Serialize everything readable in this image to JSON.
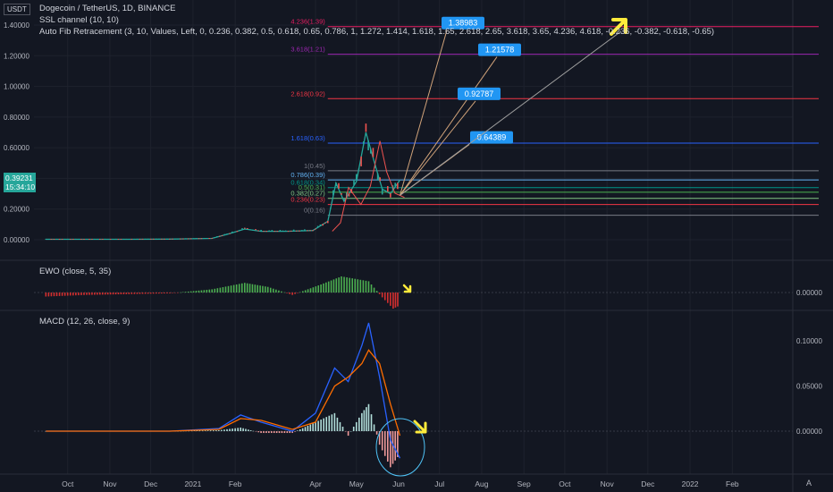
{
  "header": {
    "symbol": "Dogecoin / TetherUS, 1D, BINANCE",
    "indicator1": "SSL channel (10, 10)",
    "indicator2": "Auto Fib Retracement (3, 10, Values, Left, 0, 0.236, 0.382, 0.5, 0.618, 0.65, 0.786, 1, 1.272, 1.414, 1.618, 1.65, 2.618, 2.65, 3.618, 3.65, 4.236, 4.618, -0.236, -0.382, -0.618, -0.65)",
    "currency": "USDT"
  },
  "price_tag": {
    "price": "0.39231",
    "countdown": "15:34:10",
    "color": "#26a69a"
  },
  "auto_scale_label": "A",
  "colors": {
    "bg": "#131722",
    "up": "#26a69a",
    "down": "#ef5350",
    "grid": "#1e222d",
    "ewo_up": "#4caf50",
    "ewo_down": "#d32f2f",
    "macd": "#2962ff",
    "signal": "#ff6d00",
    "callout": "#2196f3",
    "arrow": "#ffeb3b"
  },
  "chart_data": [
    {
      "type": "line",
      "title": "Dogecoin / TetherUS, 1D, BINANCE",
      "ylabel": "USDT",
      "y_ticks": [
        "1.40000",
        "1.20000",
        "1.00000",
        "0.80000",
        "0.60000",
        "0.40000",
        "0.20000",
        "0.00000"
      ],
      "x_ticks": [
        "Oct",
        "Nov",
        "Dec",
        "2021",
        "Feb",
        "Apr",
        "May",
        "Jun",
        "Jul",
        "Aug",
        "Sep",
        "Oct",
        "Nov",
        "Dec",
        "2022",
        "Feb"
      ],
      "fib_levels": [
        {
          "label": "4.236(1.39)",
          "value": 1.39,
          "color": "#e91e63"
        },
        {
          "label": "3.618(1.21)",
          "value": 1.21,
          "color": "#9c27b0"
        },
        {
          "label": "2.618(0.92)",
          "value": 0.92,
          "color": "#f23645"
        },
        {
          "label": "1.618(0.63)",
          "value": 0.63,
          "color": "#2962ff"
        },
        {
          "label": "1(0.45)",
          "value": 0.45,
          "color": "#787b86"
        },
        {
          "label": "0.786(0.39)",
          "value": 0.39,
          "color": "#64b5f6"
        },
        {
          "label": "0.618(0.34)",
          "value": 0.34,
          "color": "#009688"
        },
        {
          "label": "0.5(0.31)",
          "value": 0.31,
          "color": "#4caf50"
        },
        {
          "label": "0.382(0.27)",
          "value": 0.27,
          "color": "#81c784"
        },
        {
          "label": "0.236(0.23)",
          "value": 0.23,
          "color": "#f23645"
        },
        {
          "label": "0(0.16)",
          "value": 0.16,
          "color": "#787b86"
        }
      ],
      "targets": [
        {
          "label": "1.38983",
          "value": 1.38983
        },
        {
          "label": "1.21578",
          "value": 1.21578
        },
        {
          "label": "0.92787",
          "value": 0.92787
        },
        {
          "label": "0.64389",
          "value": 0.64389
        }
      ],
      "price_series": {
        "x": [
          "2020-09-15",
          "2020-10-15",
          "2020-11-15",
          "2020-12-15",
          "2021-01-15",
          "2021-01-28",
          "2021-02-08",
          "2021-02-20",
          "2021-03-10",
          "2021-03-30",
          "2021-04-10",
          "2021-04-16",
          "2021-04-22",
          "2021-05-01",
          "2021-05-08",
          "2021-05-15",
          "2021-05-20",
          "2021-05-26",
          "2021-06-02"
        ],
        "y": [
          0.003,
          0.003,
          0.003,
          0.004,
          0.009,
          0.04,
          0.07,
          0.055,
          0.055,
          0.06,
          0.12,
          0.37,
          0.25,
          0.38,
          0.7,
          0.48,
          0.33,
          0.3,
          0.39
        ]
      }
    },
    {
      "type": "bar",
      "title": "EWO (close, 5, 35)",
      "y_ticks": [
        "0.00000"
      ],
      "x": [
        "2020-09-15",
        "2020-10-15",
        "2020-11-15",
        "2020-12-15",
        "2021-01-15",
        "2021-02-08",
        "2021-02-25",
        "2021-03-15",
        "2021-04-05",
        "2021-04-20",
        "2021-05-10",
        "2021-05-20",
        "2021-05-28",
        "2021-06-02"
      ],
      "values": [
        -0.005,
        -0.003,
        -0.002,
        -0.001,
        0.004,
        0.012,
        0.007,
        -0.003,
        0.01,
        0.02,
        0.014,
        -0.006,
        -0.02,
        -0.016
      ]
    },
    {
      "type": "line",
      "title": "MACD (12, 26, close, 9)",
      "y_ticks": [
        "0.10000",
        "0.05000",
        "0.00000"
      ],
      "x": [
        "2020-09-15",
        "2020-12-15",
        "2021-01-20",
        "2021-02-05",
        "2021-02-20",
        "2021-03-15",
        "2021-04-01",
        "2021-04-15",
        "2021-04-25",
        "2021-05-05",
        "2021-05-10",
        "2021-05-18",
        "2021-05-26",
        "2021-06-02"
      ],
      "series": [
        {
          "name": "MACD",
          "values": [
            0,
            0,
            0.003,
            0.018,
            0.01,
            0,
            0.02,
            0.07,
            0.055,
            0.095,
            0.12,
            0.06,
            -0.01,
            -0.03
          ]
        },
        {
          "name": "Signal",
          "values": [
            0,
            0,
            0.002,
            0.014,
            0.012,
            0.002,
            0.01,
            0.05,
            0.06,
            0.075,
            0.09,
            0.075,
            0.03,
            -0.005
          ]
        }
      ],
      "histogram": [
        0,
        0,
        0.001,
        0.004,
        -0.002,
        -0.002,
        0.01,
        0.02,
        -0.005,
        0.02,
        0.03,
        -0.015,
        -0.04,
        -0.025
      ]
    }
  ]
}
